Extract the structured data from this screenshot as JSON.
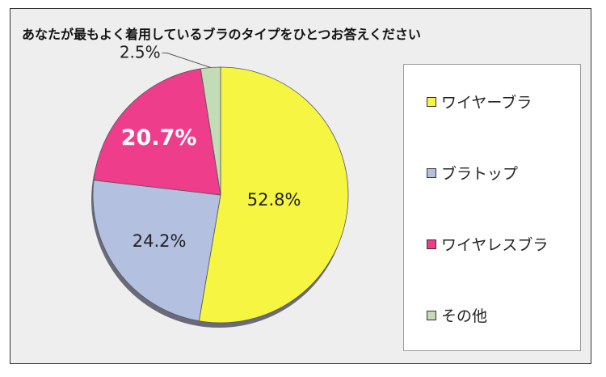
{
  "chart_data": {
    "type": "pie",
    "title": "あなたが最もよく着用しているブラのタイプをひとつお答えください",
    "slices": [
      {
        "label": "ワイヤーブラ",
        "value": 52.8,
        "value_label": "52.8%",
        "color": "#f5f542"
      },
      {
        "label": "ブラトップ",
        "value": 24.2,
        "value_label": "24.2%",
        "color": "#b3c0df"
      },
      {
        "label": "ワイヤレスブラ",
        "value": 20.7,
        "value_label": "20.7%",
        "color": "#ee3d8a"
      },
      {
        "label": "その他",
        "value": 2.5,
        "value_label": "2.5%",
        "color": "#c4dcb6"
      }
    ],
    "legend": "right",
    "start_angle": "12 o'clock",
    "direction": "clockwise"
  }
}
